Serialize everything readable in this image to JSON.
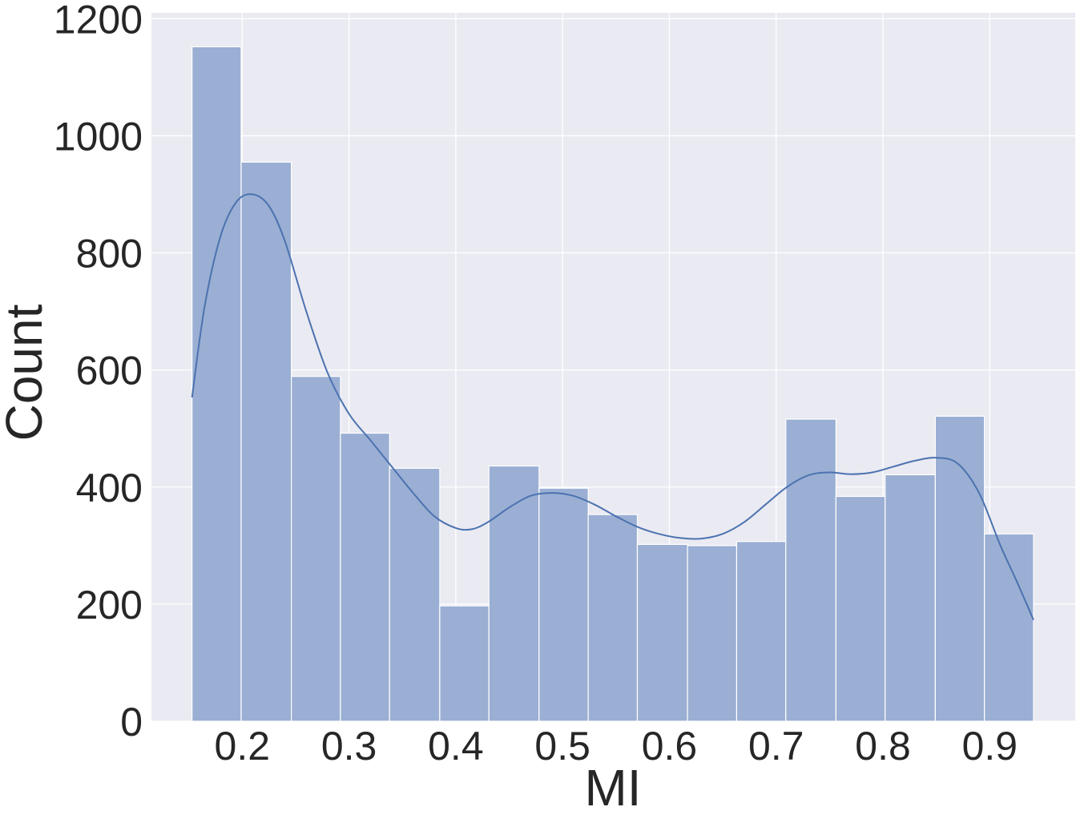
{
  "chart_data": {
    "type": "bar",
    "subtype": "histogram-with-kde",
    "title": "",
    "xlabel": "MI",
    "ylabel": "Count",
    "xlim": [
      0.115,
      0.98
    ],
    "ylim": [
      0,
      1210
    ],
    "x_ticks": [
      0.2,
      0.3,
      0.4,
      0.5,
      0.6,
      0.7,
      0.8,
      0.9
    ],
    "x_tick_labels": [
      "0.2",
      "0.3",
      "0.4",
      "0.5",
      "0.6",
      "0.7",
      "0.8",
      "0.9"
    ],
    "y_ticks": [
      0,
      200,
      400,
      600,
      800,
      1000,
      1200
    ],
    "y_tick_labels": [
      "0",
      "200",
      "400",
      "600",
      "800",
      "1000",
      "1200"
    ],
    "grid": true,
    "legend": "none",
    "colors": {
      "background": "#eaeaf2",
      "grid": "#ffffff",
      "bar_fill": "#9aafd3",
      "bar_edge": "#ffffff",
      "kde_line": "#4c72b0",
      "text": "#262626"
    },
    "bins": [
      {
        "x0": 0.153,
        "x1": 0.199,
        "count": 1152
      },
      {
        "x0": 0.199,
        "x1": 0.246,
        "count": 955
      },
      {
        "x0": 0.246,
        "x1": 0.292,
        "count": 589
      },
      {
        "x0": 0.292,
        "x1": 0.338,
        "count": 492
      },
      {
        "x0": 0.338,
        "x1": 0.385,
        "count": 432
      },
      {
        "x0": 0.385,
        "x1": 0.431,
        "count": 197
      },
      {
        "x0": 0.431,
        "x1": 0.478,
        "count": 436
      },
      {
        "x0": 0.478,
        "x1": 0.524,
        "count": 398
      },
      {
        "x0": 0.524,
        "x1": 0.57,
        "count": 353
      },
      {
        "x0": 0.57,
        "x1": 0.617,
        "count": 302
      },
      {
        "x0": 0.617,
        "x1": 0.663,
        "count": 300
      },
      {
        "x0": 0.663,
        "x1": 0.709,
        "count": 307
      },
      {
        "x0": 0.709,
        "x1": 0.756,
        "count": 516
      },
      {
        "x0": 0.756,
        "x1": 0.802,
        "count": 384
      },
      {
        "x0": 0.802,
        "x1": 0.849,
        "count": 421
      },
      {
        "x0": 0.849,
        "x1": 0.895,
        "count": 521
      },
      {
        "x0": 0.895,
        "x1": 0.941,
        "count": 320
      }
    ],
    "kde": {
      "x": [
        0.153,
        0.165,
        0.18,
        0.195,
        0.21,
        0.225,
        0.24,
        0.26,
        0.28,
        0.3,
        0.32,
        0.34,
        0.36,
        0.38,
        0.4,
        0.415,
        0.43,
        0.45,
        0.47,
        0.49,
        0.51,
        0.53,
        0.55,
        0.57,
        0.59,
        0.61,
        0.63,
        0.65,
        0.67,
        0.69,
        0.71,
        0.73,
        0.75,
        0.77,
        0.79,
        0.81,
        0.83,
        0.85,
        0.87,
        0.89,
        0.91,
        0.925,
        0.941
      ],
      "y": [
        553,
        710,
        830,
        888,
        900,
        880,
        820,
        700,
        595,
        525,
        480,
        435,
        390,
        350,
        330,
        328,
        340,
        365,
        385,
        390,
        385,
        370,
        350,
        332,
        320,
        313,
        312,
        320,
        340,
        370,
        400,
        420,
        425,
        422,
        425,
        435,
        445,
        450,
        440,
        390,
        300,
        240,
        173
      ]
    }
  }
}
